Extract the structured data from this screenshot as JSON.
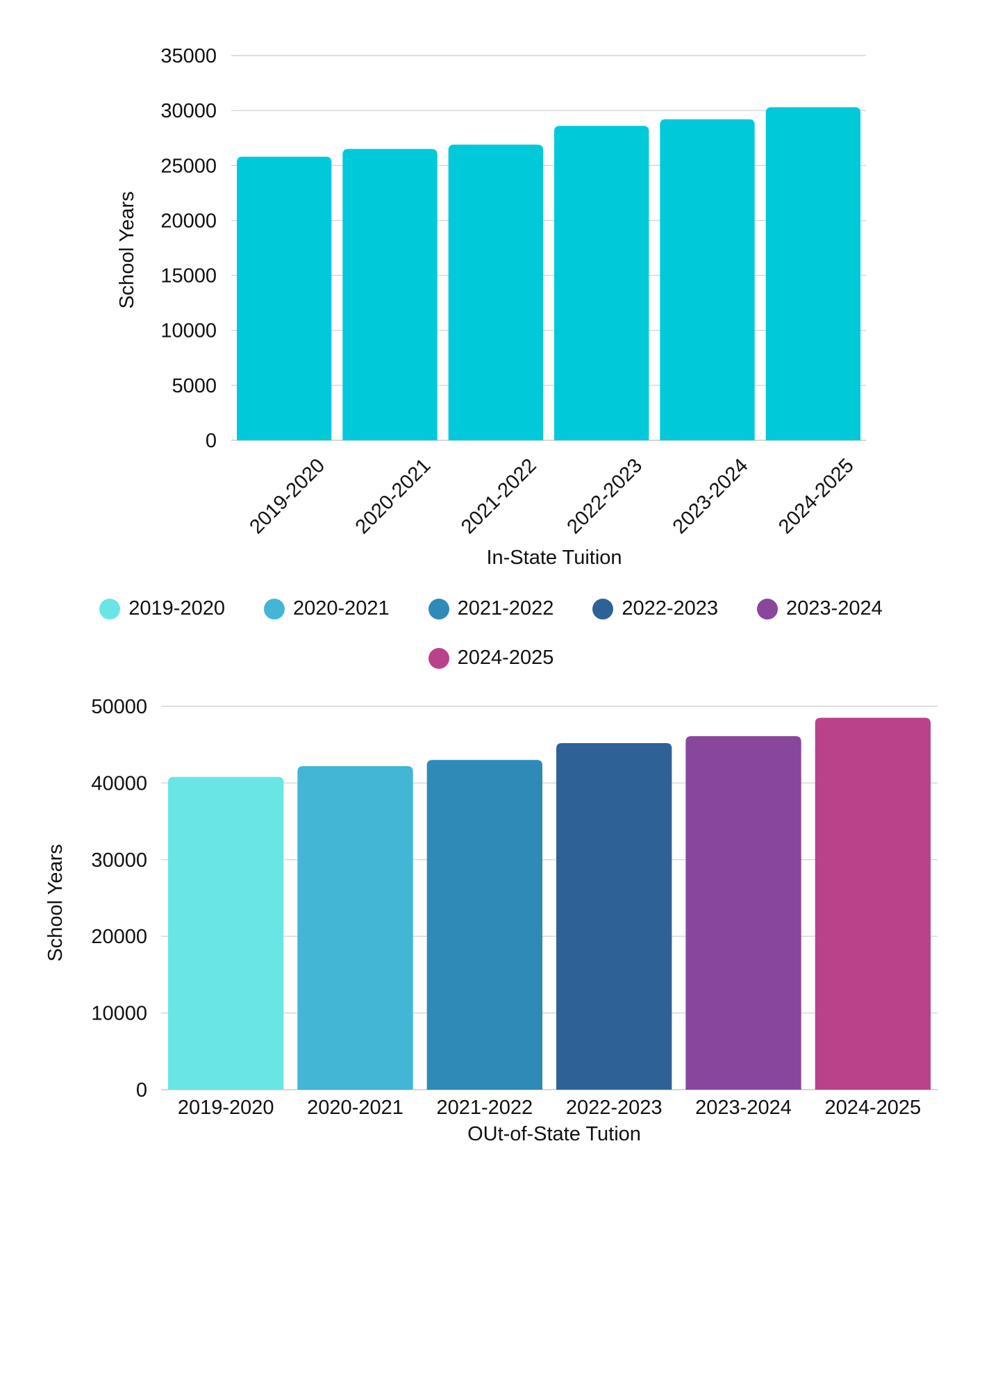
{
  "chart_data": [
    {
      "type": "bar",
      "categories": [
        "2019-2020",
        "2020-2021",
        "2021-2022",
        "2022-2023",
        "2023-2024",
        "2024-2025"
      ],
      "values": [
        25800,
        26500,
        26900,
        28600,
        29200,
        30300
      ],
      "xlabel": "In-State Tuition",
      "ylabel": "School Years",
      "ylim": [
        0,
        35000
      ],
      "yticks": [
        0,
        5000,
        10000,
        15000,
        20000,
        25000,
        30000,
        35000
      ],
      "bar_color": "#00C9DA",
      "xtick_rotation": "-45deg",
      "grid": true
    },
    {
      "type": "bar",
      "categories": [
        "2019-2020",
        "2020-2021",
        "2021-2022",
        "2022-2023",
        "2023-2024",
        "2024-2025"
      ],
      "values": [
        40800,
        42200,
        43000,
        45200,
        46100,
        48500
      ],
      "xlabel": "OUt-of-State Tution",
      "ylabel": "School Years",
      "ylim": [
        0,
        50000
      ],
      "yticks": [
        0,
        10000,
        20000,
        30000,
        40000,
        50000
      ],
      "bar_colors": [
        "#6AE5E5",
        "#42B6D4",
        "#2E8BB8",
        "#2E6296",
        "#88479B",
        "#BA428A"
      ],
      "grid": true
    }
  ],
  "legend": {
    "items": [
      {
        "label": "2019-2020",
        "color": "#6AE5E5"
      },
      {
        "label": "2020-2021",
        "color": "#42B6D4"
      },
      {
        "label": "2021-2022",
        "color": "#2E8BB8"
      },
      {
        "label": "2022-2023",
        "color": "#2E6296"
      },
      {
        "label": "2023-2024",
        "color": "#88479B"
      },
      {
        "label": "2024-2025",
        "color": "#BA428A"
      }
    ]
  }
}
